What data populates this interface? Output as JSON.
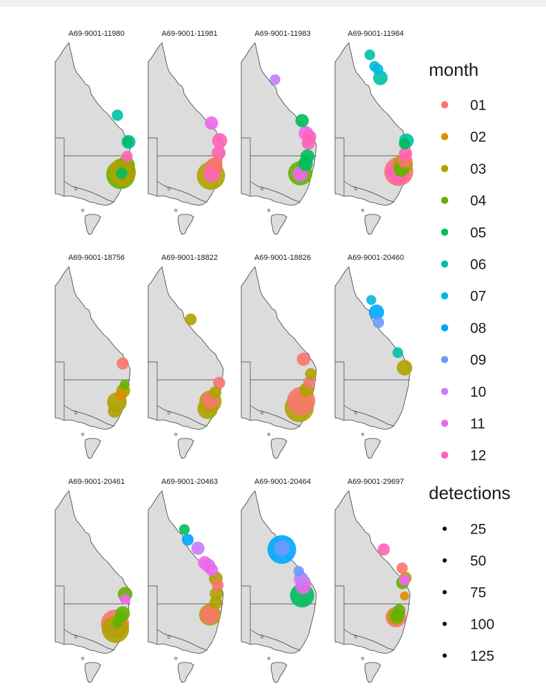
{
  "chart_data": {
    "type": "scatter",
    "title": "",
    "xlabel": "",
    "ylabel": "",
    "grid": false,
    "legend_placement": "right",
    "month_colors": {
      "01": "#F8766D",
      "02": "#DB8E00",
      "03": "#AEA200",
      "04": "#64B200",
      "05": "#00BD5C",
      "06": "#00C1A7",
      "07": "#00BADE",
      "08": "#00A6FF",
      "09": "#6B9BFF",
      "10": "#C77CFF",
      "11": "#EF67EB",
      "12": "#FF63B6"
    },
    "legend_month": {
      "title": "month",
      "entries": [
        "01",
        "02",
        "03",
        "04",
        "05",
        "06",
        "07",
        "08",
        "09",
        "10",
        "11",
        "12"
      ]
    },
    "legend_detections": {
      "title": "detections",
      "entries": [
        "25",
        "50",
        "75",
        "100",
        "125"
      ],
      "values": [
        25,
        50,
        75,
        100,
        125
      ]
    },
    "panels": [
      {
        "tag": "A69-9001-11980",
        "points": [
          {
            "lon": 150.9,
            "lat": -22.5,
            "month": "06",
            "detections": 12
          },
          {
            "lon": 153.2,
            "lat": -26.9,
            "month": "06",
            "detections": 22
          },
          {
            "lon": 153.1,
            "lat": -26.9,
            "month": "05",
            "detections": 10
          },
          {
            "lon": 152.9,
            "lat": -29.3,
            "month": "12",
            "detections": 12
          },
          {
            "lon": 152.6,
            "lat": -30.8,
            "month": "04",
            "detections": 48
          },
          {
            "lon": 152.3,
            "lat": -31.2,
            "month": "03",
            "detections": 40
          },
          {
            "lon": 151.6,
            "lat": -32.3,
            "month": "04",
            "detections": 140
          },
          {
            "lon": 151.9,
            "lat": -31.9,
            "month": "03",
            "detections": 120
          },
          {
            "lon": 151.8,
            "lat": -32.1,
            "month": "05",
            "detections": 12
          },
          {
            "lon": 152.1,
            "lat": -32.7,
            "month": "03",
            "detections": 30
          }
        ]
      },
      {
        "tag": "A69-9001-11981",
        "points": [
          {
            "lon": 151.1,
            "lat": -23.8,
            "month": "11",
            "detections": 20
          },
          {
            "lon": 152.8,
            "lat": -26.7,
            "month": "12",
            "detections": 28
          },
          {
            "lon": 152.6,
            "lat": -28.7,
            "month": "12",
            "detections": 22
          },
          {
            "lon": 152.0,
            "lat": -30.5,
            "month": "01",
            "detections": 20
          },
          {
            "lon": 151.6,
            "lat": -31.0,
            "month": "01",
            "detections": 40
          },
          {
            "lon": 151.0,
            "lat": -32.5,
            "month": "03",
            "detections": 130
          },
          {
            "lon": 151.1,
            "lat": -32.2,
            "month": "12",
            "detections": 35
          }
        ]
      },
      {
        "tag": "A69-9001-11983",
        "points": [
          {
            "lon": 145.0,
            "lat": -16.6,
            "month": "10",
            "detections": 10
          },
          {
            "lon": 150.6,
            "lat": -23.4,
            "month": "05",
            "detections": 20
          },
          {
            "lon": 151.4,
            "lat": -25.5,
            "month": "11",
            "detections": 25
          },
          {
            "lon": 152.1,
            "lat": -26.1,
            "month": "12",
            "detections": 22
          },
          {
            "lon": 151.9,
            "lat": -27.1,
            "month": "12",
            "detections": 20
          },
          {
            "lon": 151.7,
            "lat": -29.3,
            "month": "05",
            "detections": 22
          },
          {
            "lon": 151.3,
            "lat": -30.5,
            "month": "05",
            "detections": 25
          },
          {
            "lon": 150.2,
            "lat": -32.1,
            "month": "04",
            "detections": 90
          },
          {
            "lon": 150.2,
            "lat": -32.2,
            "month": "11",
            "detections": 28
          }
        ]
      },
      {
        "tag": "A69-9001-11984",
        "points": [
          {
            "lon": 145.2,
            "lat": -12.5,
            "month": "06",
            "detections": 10
          },
          {
            "lon": 146.2,
            "lat": -14.4,
            "month": "07",
            "detections": 10
          },
          {
            "lon": 146.9,
            "lat": -14.9,
            "month": "07",
            "detections": 10
          },
          {
            "lon": 147.4,
            "lat": -16.3,
            "month": "06",
            "detections": 25
          },
          {
            "lon": 152.8,
            "lat": -26.7,
            "month": "06",
            "detections": 25
          },
          {
            "lon": 152.4,
            "lat": -27.2,
            "month": "05",
            "detections": 12
          },
          {
            "lon": 152.6,
            "lat": -28.9,
            "month": "12",
            "detections": 20
          },
          {
            "lon": 152.5,
            "lat": -30.0,
            "month": "01",
            "detections": 25
          },
          {
            "lon": 152.1,
            "lat": -30.6,
            "month": "03",
            "detections": 55
          },
          {
            "lon": 151.2,
            "lat": -31.8,
            "month": "01",
            "detections": 140
          },
          {
            "lon": 151.0,
            "lat": -32.0,
            "month": "12",
            "detections": 80
          },
          {
            "lon": 151.7,
            "lat": -31.4,
            "month": "04",
            "detections": 30
          }
        ]
      },
      {
        "tag": "A69-9001-18756",
        "points": [
          {
            "lon": 152.0,
            "lat": -26.5,
            "month": "01",
            "detections": 15
          },
          {
            "lon": 152.4,
            "lat": -30.0,
            "month": "04",
            "detections": 8
          },
          {
            "lon": 152.1,
            "lat": -31.0,
            "month": "03",
            "detections": 22
          },
          {
            "lon": 151.6,
            "lat": -31.8,
            "month": "02",
            "detections": 10
          },
          {
            "lon": 150.8,
            "lat": -32.9,
            "month": "03",
            "detections": 55
          },
          {
            "lon": 150.3,
            "lat": -34.4,
            "month": "03",
            "detections": 20
          }
        ]
      },
      {
        "tag": "A69-9001-18822",
        "points": [
          {
            "lon": 146.8,
            "lat": -19.2,
            "month": "03",
            "detections": 14
          },
          {
            "lon": 152.7,
            "lat": -29.7,
            "month": "01",
            "detections": 15
          },
          {
            "lon": 151.9,
            "lat": -31.3,
            "month": "03",
            "detections": 15
          },
          {
            "lon": 150.9,
            "lat": -32.8,
            "month": "03",
            "detections": 75
          },
          {
            "lon": 150.9,
            "lat": -32.6,
            "month": "01",
            "detections": 40
          },
          {
            "lon": 150.3,
            "lat": -34.0,
            "month": "03",
            "detections": 60
          }
        ]
      },
      {
        "tag": "A69-9001-18826",
        "points": [
          {
            "lon": 150.9,
            "lat": -25.8,
            "month": "01",
            "detections": 20
          },
          {
            "lon": 152.4,
            "lat": -28.2,
            "month": "03",
            "detections": 12
          },
          {
            "lon": 152.1,
            "lat": -29.6,
            "month": "01",
            "detections": 14
          },
          {
            "lon": 151.5,
            "lat": -30.9,
            "month": "03",
            "detections": 25
          },
          {
            "lon": 150.4,
            "lat": -32.7,
            "month": "01",
            "detections": 130
          },
          {
            "lon": 150.0,
            "lat": -33.8,
            "month": "03",
            "detections": 140
          }
        ]
      },
      {
        "tag": "A69-9001-20460",
        "points": [
          {
            "lon": 145.5,
            "lat": -16.0,
            "month": "07",
            "detections": 8
          },
          {
            "lon": 146.6,
            "lat": -18.0,
            "month": "08",
            "detections": 28
          },
          {
            "lon": 147.0,
            "lat": -19.7,
            "month": "09",
            "detections": 12
          },
          {
            "lon": 151.0,
            "lat": -24.7,
            "month": "06",
            "detections": 10
          },
          {
            "lon": 152.4,
            "lat": -27.2,
            "month": "03",
            "detections": 30
          }
        ]
      },
      {
        "tag": "A69-9001-20461",
        "points": [
          {
            "lon": 152.5,
            "lat": -27.6,
            "month": "04",
            "detections": 25
          },
          {
            "lon": 152.5,
            "lat": -28.4,
            "month": "11",
            "detections": 10
          },
          {
            "lon": 152.0,
            "lat": -30.8,
            "month": "04",
            "detections": 25
          },
          {
            "lon": 151.5,
            "lat": -31.4,
            "month": "04",
            "detections": 15
          },
          {
            "lon": 150.4,
            "lat": -32.5,
            "month": "01",
            "detections": 130
          },
          {
            "lon": 150.5,
            "lat": -33.4,
            "month": "03",
            "detections": 120
          },
          {
            "lon": 150.9,
            "lat": -32.3,
            "month": "04",
            "detections": 10
          }
        ]
      },
      {
        "tag": "A69-9001-20463",
        "points": [
          {
            "lon": 145.5,
            "lat": -16.9,
            "month": "05",
            "detections": 10
          },
          {
            "lon": 146.2,
            "lat": -18.6,
            "month": "08",
            "detections": 14
          },
          {
            "lon": 148.3,
            "lat": -20.0,
            "month": "10",
            "detections": 20
          },
          {
            "lon": 149.7,
            "lat": -22.4,
            "month": "11",
            "detections": 20
          },
          {
            "lon": 150.5,
            "lat": -22.9,
            "month": "10",
            "detections": 22
          },
          {
            "lon": 151.2,
            "lat": -23.6,
            "month": "11",
            "detections": 16
          },
          {
            "lon": 152.0,
            "lat": -25.0,
            "month": "03",
            "detections": 22
          },
          {
            "lon": 152.4,
            "lat": -26.1,
            "month": "01",
            "detections": 14
          },
          {
            "lon": 152.1,
            "lat": -27.5,
            "month": "03",
            "detections": 18
          },
          {
            "lon": 152.0,
            "lat": -29.0,
            "month": "03",
            "detections": 18
          },
          {
            "lon": 150.8,
            "lat": -31.0,
            "month": "03",
            "detections": 70
          },
          {
            "lon": 150.8,
            "lat": -31.0,
            "month": "01",
            "detections": 50
          }
        ]
      },
      {
        "tag": "A69-9001-20464",
        "points": [
          {
            "lon": 146.4,
            "lat": -20.2,
            "month": "08",
            "detections": 135
          },
          {
            "lon": 146.4,
            "lat": -20.0,
            "month": "09",
            "detections": 30
          },
          {
            "lon": 149.9,
            "lat": -23.8,
            "month": "09",
            "detections": 10
          },
          {
            "lon": 150.4,
            "lat": -25.1,
            "month": "10",
            "detections": 25
          },
          {
            "lon": 150.8,
            "lat": -26.3,
            "month": "11",
            "detections": 30
          },
          {
            "lon": 150.6,
            "lat": -27.8,
            "month": "05",
            "detections": 90
          }
        ]
      },
      {
        "tag": "A69-9001-29697",
        "points": [
          {
            "lon": 148.1,
            "lat": -20.2,
            "month": "12",
            "detections": 15
          },
          {
            "lon": 151.9,
            "lat": -23.3,
            "month": "01",
            "detections": 12
          },
          {
            "lon": 152.6,
            "lat": -24.9,
            "month": "03",
            "detections": 15
          },
          {
            "lon": 152.0,
            "lat": -25.7,
            "month": "04",
            "detections": 18
          },
          {
            "lon": 152.4,
            "lat": -25.3,
            "month": "11",
            "detections": 12
          },
          {
            "lon": 152.4,
            "lat": -27.9,
            "month": "02",
            "detections": 6
          },
          {
            "lon": 151.3,
            "lat": -30.3,
            "month": "04",
            "detections": 16
          },
          {
            "lon": 150.6,
            "lat": -31.4,
            "month": "01",
            "detections": 60
          },
          {
            "lon": 150.6,
            "lat": -31.3,
            "month": "03",
            "detections": 35
          },
          {
            "lon": 150.9,
            "lat": -31.2,
            "month": "04",
            "detections": 20
          }
        ]
      }
    ]
  }
}
